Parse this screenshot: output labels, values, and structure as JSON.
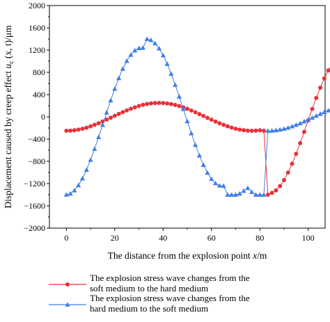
{
  "chart_data": {
    "type": "line",
    "xlabel": "The distance from the explosion point x/m",
    "ylabel_parts": [
      "Displacement caused by creep effect ",
      "u",
      "c",
      " (x, t)/μm"
    ],
    "xlim": [
      -7,
      107
    ],
    "ylim": [
      -2000,
      2000
    ],
    "xticks": [
      0,
      20,
      40,
      60,
      80,
      100
    ],
    "yticks": [
      -2000,
      -1600,
      -1200,
      -800,
      -400,
      0,
      400,
      800,
      1200,
      1600,
      2000
    ],
    "ytick_labels": [
      "−2000",
      "−1600",
      "−1200",
      "−800",
      "−400",
      "0",
      "400",
      "800",
      "1200",
      "1600",
      "2000"
    ],
    "grid": false,
    "legend_position": "below",
    "series": [
      {
        "name_lines": [
          "The explosion stress wave changes from the",
          "soft medium to the hard medium"
        ],
        "color": "#e8313a",
        "marker": "circle",
        "x_start": 0,
        "x_step": 1.6667,
        "y": [
          -250,
          -248,
          -241,
          -230,
          -214,
          -195,
          -171,
          -144,
          -115,
          -83,
          -49,
          -15,
          19,
          53,
          85,
          116,
          145,
          171,
          195,
          215,
          231,
          242,
          249,
          250,
          248,
          241,
          229,
          214,
          194,
          171,
          144,
          114,
          82,
          49,
          15,
          -19,
          -52,
          -85,
          -116,
          -144,
          -171,
          -194,
          -214,
          -230,
          -241,
          -248,
          -250,
          -248,
          -242,
          -250,
          -1400,
          -1367,
          -1322,
          -1245,
          -1137,
          -1002,
          -844,
          -666,
          -473,
          -270,
          -64,
          141,
          339,
          524,
          691,
          835,
          952,
          1040,
          1095,
          1117,
          1400,
          1379,
          1322,
          1230,
          1106,
          952,
          774,
          576,
          364,
          143,
          -78,
          -296,
          -504,
          -695,
          -864,
          -1005,
          -1116,
          -1194,
          -1235,
          -1240,
          -1400,
          -1400,
          -1400
        ]
      },
      {
        "name_lines": [
          "The explosion stress wave changes from the",
          "hard medium to the soft medium"
        ],
        "color": "#3f7fe6",
        "marker": "triangle",
        "x_start": 0,
        "x_step": 1.6667,
        "y": [
          -1400,
          -1379,
          -1322,
          -1230,
          -1106,
          -952,
          -774,
          -576,
          -364,
          -143,
          78,
          296,
          504,
          695,
          864,
          1005,
          1116,
          1194,
          1235,
          1240,
          1400,
          1379,
          1322,
          1230,
          1106,
          952,
          774,
          576,
          364,
          143,
          -78,
          -296,
          -504,
          -695,
          -864,
          -1005,
          -1116,
          -1194,
          -1235,
          -1240,
          -1400,
          -1400,
          -1400,
          -1380,
          -1330,
          -1280,
          -1350,
          -1400,
          -1400,
          -1400,
          -250,
          -248,
          -241,
          -230,
          -214,
          -195,
          -171,
          -144,
          -115,
          -83,
          -49,
          -15,
          19,
          53,
          85,
          116,
          145,
          171,
          195,
          215,
          231,
          242,
          249,
          250,
          248,
          241,
          229,
          214,
          194,
          171,
          144,
          114,
          82,
          49,
          15,
          -19,
          -52,
          -85,
          -116,
          -144,
          -171,
          -194,
          -214,
          -230,
          -241,
          -248,
          -250
        ]
      }
    ]
  }
}
